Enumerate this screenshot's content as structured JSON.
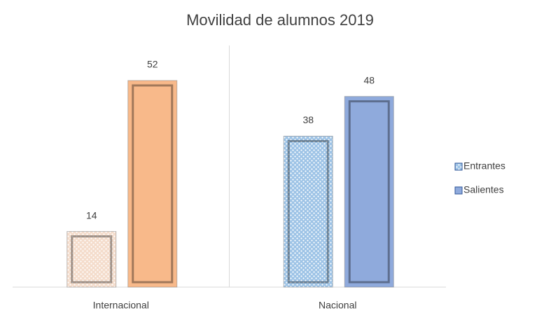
{
  "chart_data": {
    "type": "bar",
    "title": "Movilidad de alumnos 2019",
    "categories": [
      "Internacional",
      "Nacional"
    ],
    "series": [
      {
        "name": "Entrantes",
        "color": "#9dc3e6",
        "point_colors": [
          "#f4dccb",
          "#9dc3e6"
        ],
        "pattern": "dots",
        "values": [
          14,
          38
        ]
      },
      {
        "name": "Salientes",
        "color": "#8faadc",
        "point_colors": [
          "#f8b98a",
          "#8faadc"
        ],
        "pattern": "solid",
        "values": [
          52,
          48
        ]
      }
    ],
    "legend": "right",
    "data_labels": true
  }
}
